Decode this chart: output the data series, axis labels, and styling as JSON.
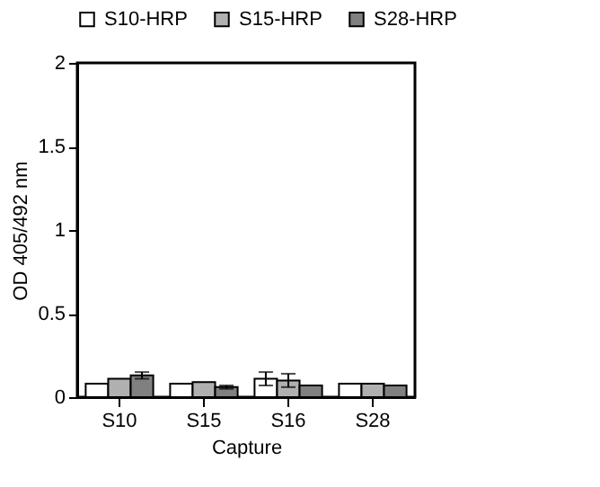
{
  "chart_data": {
    "type": "bar",
    "xlabel": "Capture",
    "ylabel": "OD 405/492 nm",
    "categories": [
      "S10",
      "S15",
      "S16",
      "S28"
    ],
    "series": [
      {
        "name": "S10-HRP",
        "color": "#ffffff",
        "values": [
          0.08,
          0.08,
          0.11,
          0.08
        ],
        "errors": [
          null,
          null,
          0.04,
          null
        ]
      },
      {
        "name": "S15-HRP",
        "color": "#b0b0b0",
        "values": [
          0.11,
          0.09,
          0.1,
          0.08
        ],
        "errors": [
          null,
          null,
          0.04,
          null
        ]
      },
      {
        "name": "S28-HRP",
        "color": "#808080",
        "values": [
          0.13,
          0.06,
          0.07,
          0.07
        ],
        "errors": [
          0.02,
          0.01,
          null,
          null
        ]
      }
    ],
    "ylim": [
      0,
      2
    ],
    "yticks": [
      0,
      0.5,
      1,
      1.5,
      2
    ],
    "grid": false,
    "legend": "top"
  }
}
